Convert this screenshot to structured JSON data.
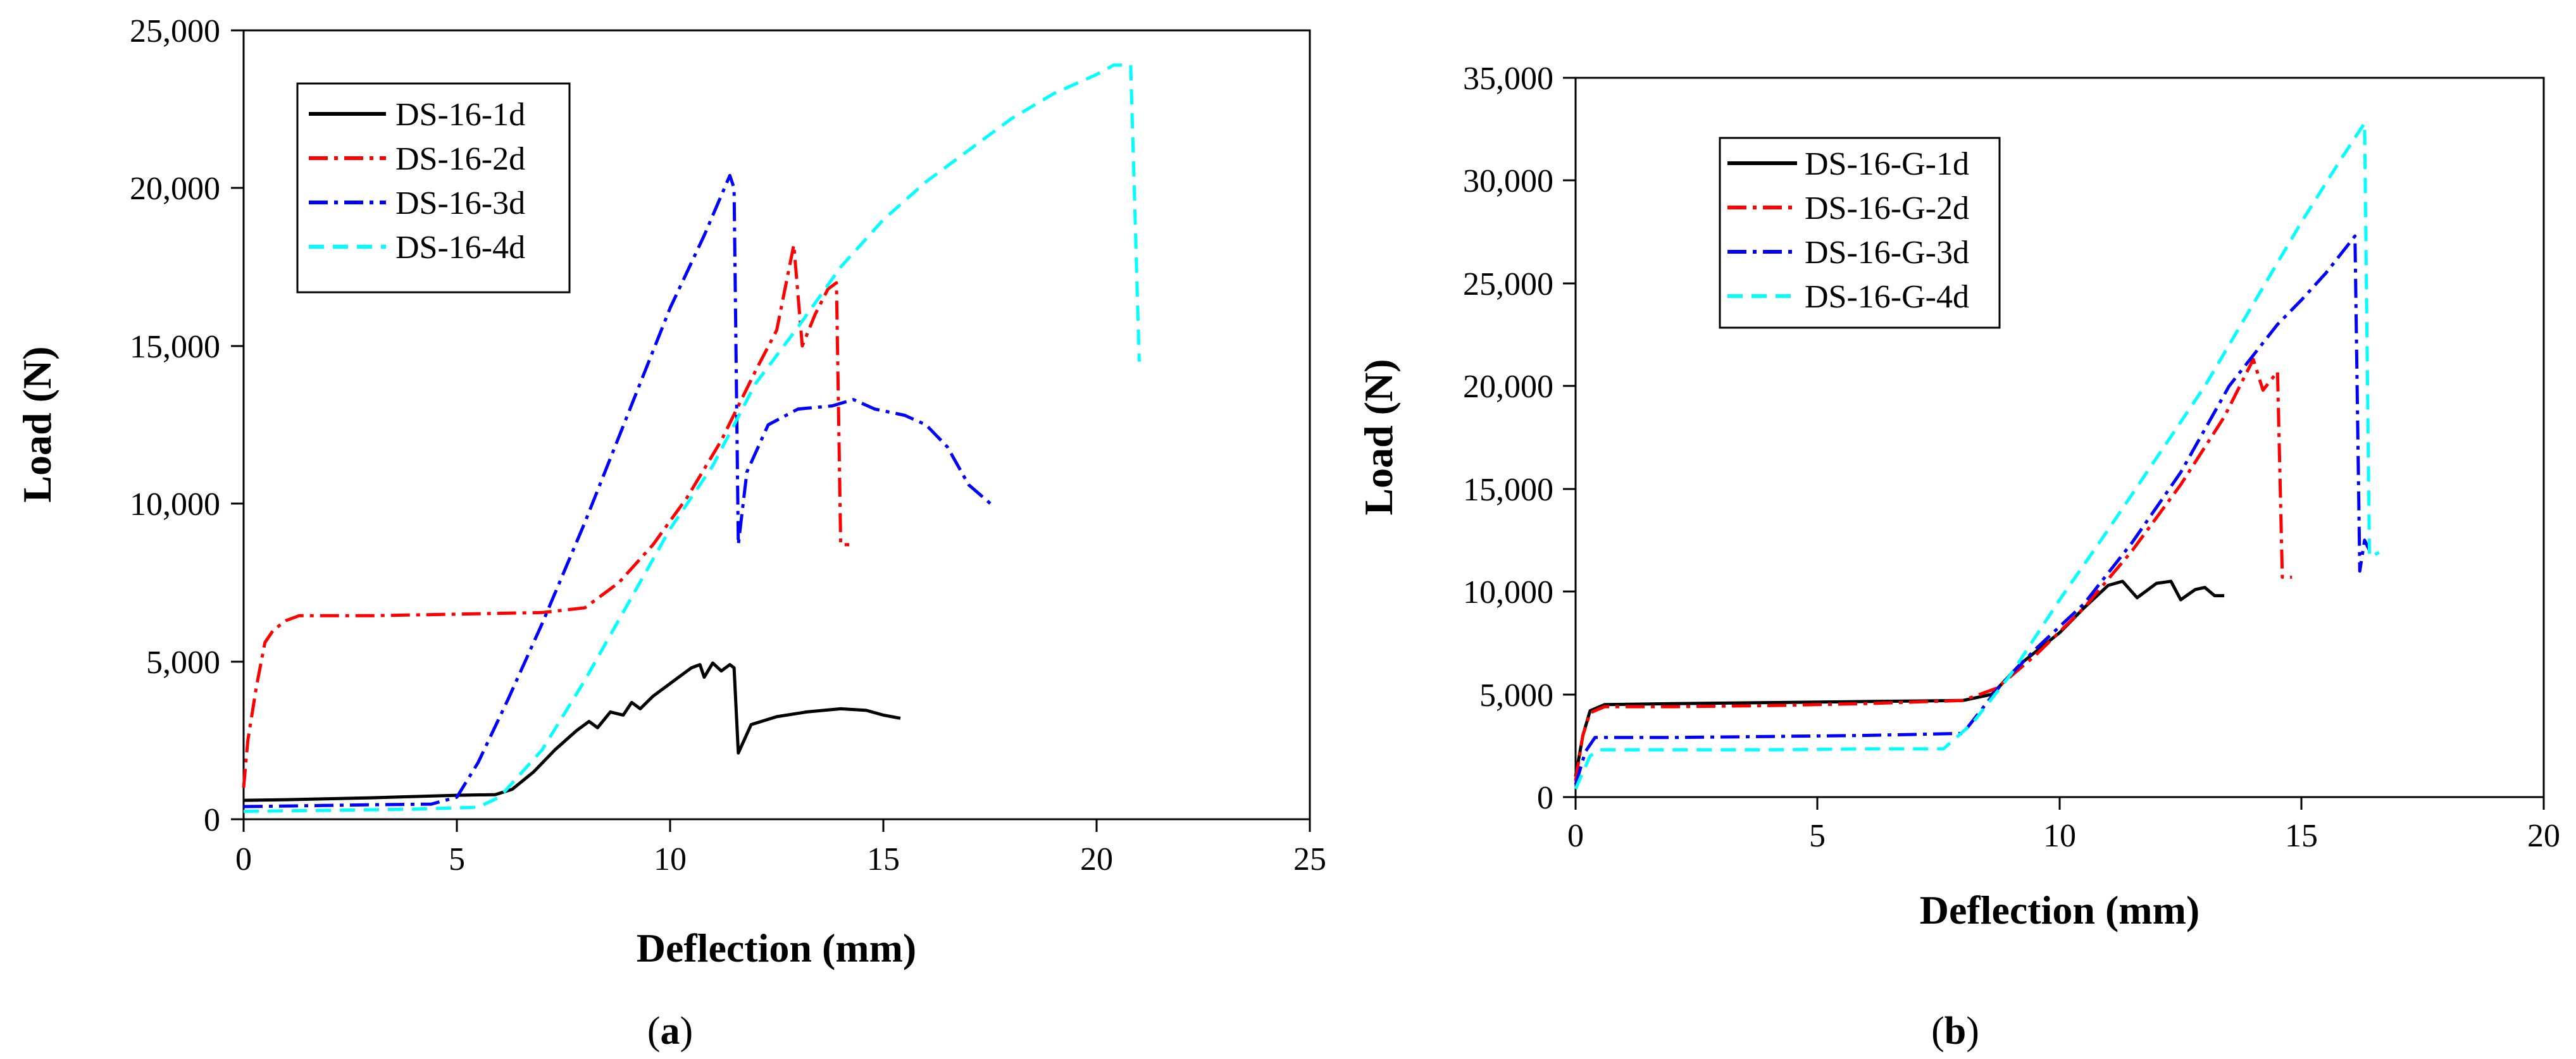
{
  "chart_data": [
    {
      "type": "line",
      "panel_label": "a",
      "xlabel": "Deflection (mm)",
      "ylabel": "Load (N)",
      "xlim": [
        0,
        25
      ],
      "ylim": [
        0,
        25000
      ],
      "xticks": [
        0,
        5,
        10,
        15,
        20,
        25
      ],
      "yticks": [
        0,
        5000,
        10000,
        15000,
        20000,
        25000
      ],
      "xtick_labels": [
        "0",
        "5",
        "10",
        "15",
        "20",
        "25"
      ],
      "ytick_labels": [
        "0",
        "5,000",
        "10,000",
        "15,000",
        "20,000",
        "25,000"
      ],
      "grid": false,
      "legend_position": "top-left",
      "series": [
        {
          "name": "DS-16-1d",
          "color": "#000000",
          "dash": "solid",
          "points": [
            [
              0,
              600
            ],
            [
              1,
              620
            ],
            [
              2,
              650
            ],
            [
              3,
              680
            ],
            [
              4,
              720
            ],
            [
              5,
              760
            ],
            [
              5.9,
              780
            ],
            [
              6.3,
              950
            ],
            [
              6.8,
              1500
            ],
            [
              7.3,
              2200
            ],
            [
              7.8,
              2800
            ],
            [
              8.1,
              3100
            ],
            [
              8.3,
              2900
            ],
            [
              8.6,
              3400
            ],
            [
              8.9,
              3300
            ],
            [
              9.1,
              3700
            ],
            [
              9.3,
              3500
            ],
            [
              9.6,
              3900
            ],
            [
              9.9,
              4200
            ],
            [
              10.2,
              4500
            ],
            [
              10.5,
              4800
            ],
            [
              10.7,
              4900
            ],
            [
              10.8,
              4500
            ],
            [
              11,
              4950
            ],
            [
              11.2,
              4700
            ],
            [
              11.4,
              4900
            ],
            [
              11.5,
              4800
            ],
            [
              11.6,
              2100
            ],
            [
              11.9,
              3000
            ],
            [
              12.5,
              3250
            ],
            [
              13.2,
              3400
            ],
            [
              14,
              3500
            ],
            [
              14.6,
              3450
            ],
            [
              15,
              3300
            ],
            [
              15.4,
              3200
            ]
          ]
        },
        {
          "name": "DS-16-2d",
          "color": "#ff0000",
          "dash": "dashdot",
          "points": [
            [
              0,
              1000
            ],
            [
              0.1,
              2500
            ],
            [
              0.3,
              4200
            ],
            [
              0.5,
              5600
            ],
            [
              0.7,
              6000
            ],
            [
              1,
              6300
            ],
            [
              1.3,
              6450
            ],
            [
              3,
              6450
            ],
            [
              5,
              6500
            ],
            [
              7,
              6550
            ],
            [
              8,
              6700
            ],
            [
              8.8,
              7500
            ],
            [
              9.6,
              8700
            ],
            [
              10.4,
              10200
            ],
            [
              11.2,
              12000
            ],
            [
              12,
              14200
            ],
            [
              12.5,
              15500
            ],
            [
              12.9,
              18200
            ],
            [
              13.1,
              15000
            ],
            [
              13.4,
              16000
            ],
            [
              13.7,
              16800
            ],
            [
              13.9,
              17000
            ],
            [
              14,
              8700
            ],
            [
              14.2,
              8700
            ]
          ]
        },
        {
          "name": "DS-16-3d",
          "color": "#0000ff",
          "dash": "dashdot",
          "points": [
            [
              0,
              400
            ],
            [
              1,
              420
            ],
            [
              2,
              440
            ],
            [
              3,
              460
            ],
            [
              4.4,
              480
            ],
            [
              5,
              700
            ],
            [
              5.5,
              1800
            ],
            [
              6.2,
              3800
            ],
            [
              7,
              6200
            ],
            [
              8,
              9400
            ],
            [
              9,
              12800
            ],
            [
              10,
              16200
            ],
            [
              10.8,
              18500
            ],
            [
              11.4,
              20400
            ],
            [
              11.5,
              20000
            ],
            [
              11.6,
              8700
            ],
            [
              11.8,
              11000
            ],
            [
              12.3,
              12500
            ],
            [
              13,
              13000
            ],
            [
              13.8,
              13100
            ],
            [
              14.3,
              13300
            ],
            [
              14.8,
              13000
            ],
            [
              15.5,
              12800
            ],
            [
              16,
              12500
            ],
            [
              16.5,
              11800
            ],
            [
              17,
              10600
            ],
            [
              17.6,
              9900
            ]
          ]
        },
        {
          "name": "DS-16-4d",
          "color": "#00ffff",
          "dash": "dashed",
          "points": [
            [
              0,
              250
            ],
            [
              2,
              280
            ],
            [
              4,
              320
            ],
            [
              5.5,
              380
            ],
            [
              6,
              700
            ],
            [
              7,
              2200
            ],
            [
              8,
              4400
            ],
            [
              9,
              6800
            ],
            [
              10,
              9200
            ],
            [
              11,
              11200
            ],
            [
              12,
              13800
            ],
            [
              13,
              15600
            ],
            [
              14,
              17500
            ],
            [
              15,
              19000
            ],
            [
              16,
              20200
            ],
            [
              17,
              21200
            ],
            [
              18,
              22200
            ],
            [
              19,
              23000
            ],
            [
              20,
              23600
            ],
            [
              20.4,
              23900
            ],
            [
              20.8,
              23900
            ],
            [
              21,
              14500
            ]
          ]
        }
      ]
    },
    {
      "type": "line",
      "panel_label": "b",
      "xlabel": "Deflection (mm)",
      "ylabel": "Load (N)",
      "xlim": [
        0,
        20
      ],
      "ylim": [
        0,
        35000
      ],
      "xticks": [
        0,
        5,
        10,
        15,
        20
      ],
      "yticks": [
        0,
        5000,
        10000,
        15000,
        20000,
        25000,
        30000,
        35000
      ],
      "xtick_labels": [
        "0",
        "5",
        "10",
        "15",
        "20"
      ],
      "ytick_labels": [
        "0",
        "5,000",
        "10,000",
        "15,000",
        "20,000",
        "25,000",
        "30,000",
        "35,000"
      ],
      "grid": false,
      "legend_position": "top-left",
      "series": [
        {
          "name": "DS-16-G-1d",
          "color": "#000000",
          "dash": "solid",
          "points": [
            [
              0,
              1000
            ],
            [
              0.15,
              3000
            ],
            [
              0.3,
              4200
            ],
            [
              0.6,
              4500
            ],
            [
              2,
              4550
            ],
            [
              4,
              4600
            ],
            [
              6,
              4650
            ],
            [
              8,
              4700
            ],
            [
              8.6,
              5000
            ],
            [
              9.2,
              6500
            ],
            [
              10,
              8000
            ],
            [
              10.5,
              9200
            ],
            [
              11,
              10300
            ],
            [
              11.3,
              10500
            ],
            [
              11.6,
              9700
            ],
            [
              12,
              10400
            ],
            [
              12.3,
              10500
            ],
            [
              12.5,
              9600
            ],
            [
              12.8,
              10100
            ],
            [
              13,
              10200
            ],
            [
              13.2,
              9800
            ],
            [
              13.4,
              9800
            ]
          ]
        },
        {
          "name": "DS-16-G-2d",
          "color": "#ff0000",
          "dash": "dashdot",
          "points": [
            [
              0,
              800
            ],
            [
              0.15,
              3000
            ],
            [
              0.3,
              4100
            ],
            [
              0.6,
              4400
            ],
            [
              2,
              4400
            ],
            [
              4,
              4450
            ],
            [
              6,
              4550
            ],
            [
              8,
              4700
            ],
            [
              8.7,
              5300
            ],
            [
              9.5,
              6900
            ],
            [
              10.5,
              9200
            ],
            [
              11.5,
              12000
            ],
            [
              12.5,
              15200
            ],
            [
              13.4,
              18500
            ],
            [
              14,
              21300
            ],
            [
              14.2,
              19800
            ],
            [
              14.5,
              20700
            ],
            [
              14.6,
              10700
            ],
            [
              14.8,
              10700
            ]
          ]
        },
        {
          "name": "DS-16-G-3d",
          "color": "#0000ff",
          "dash": "dashdot",
          "points": [
            [
              0,
              600
            ],
            [
              0.2,
              2200
            ],
            [
              0.4,
              2900
            ],
            [
              2,
              2900
            ],
            [
              4,
              2950
            ],
            [
              6,
              3000
            ],
            [
              8,
              3100
            ],
            [
              8.8,
              5500
            ],
            [
              9.5,
              7200
            ],
            [
              10.5,
              9400
            ],
            [
              11.5,
              12400
            ],
            [
              12.5,
              15800
            ],
            [
              13.5,
              20000
            ],
            [
              14.5,
              23000
            ],
            [
              15,
              24200
            ],
            [
              15.5,
              25500
            ],
            [
              16.1,
              27300
            ],
            [
              16.2,
              11000
            ],
            [
              16.3,
              12500
            ],
            [
              16.4,
              12000
            ]
          ]
        },
        {
          "name": "DS-16-G-4d",
          "color": "#00ffff",
          "dash": "dashed",
          "points": [
            [
              0,
              400
            ],
            [
              0.3,
              2000
            ],
            [
              0.5,
              2300
            ],
            [
              2,
              2300
            ],
            [
              4,
              2300
            ],
            [
              6,
              2350
            ],
            [
              7.6,
              2350
            ],
            [
              8.2,
              3600
            ],
            [
              9,
              6000
            ],
            [
              10,
              9600
            ],
            [
              11,
              13000
            ],
            [
              12,
              16500
            ],
            [
              13,
              20000
            ],
            [
              14,
              24000
            ],
            [
              15,
              28000
            ],
            [
              15.8,
              31000
            ],
            [
              16.3,
              32800
            ],
            [
              16.4,
              11700
            ],
            [
              16.6,
              11900
            ]
          ]
        }
      ]
    }
  ]
}
